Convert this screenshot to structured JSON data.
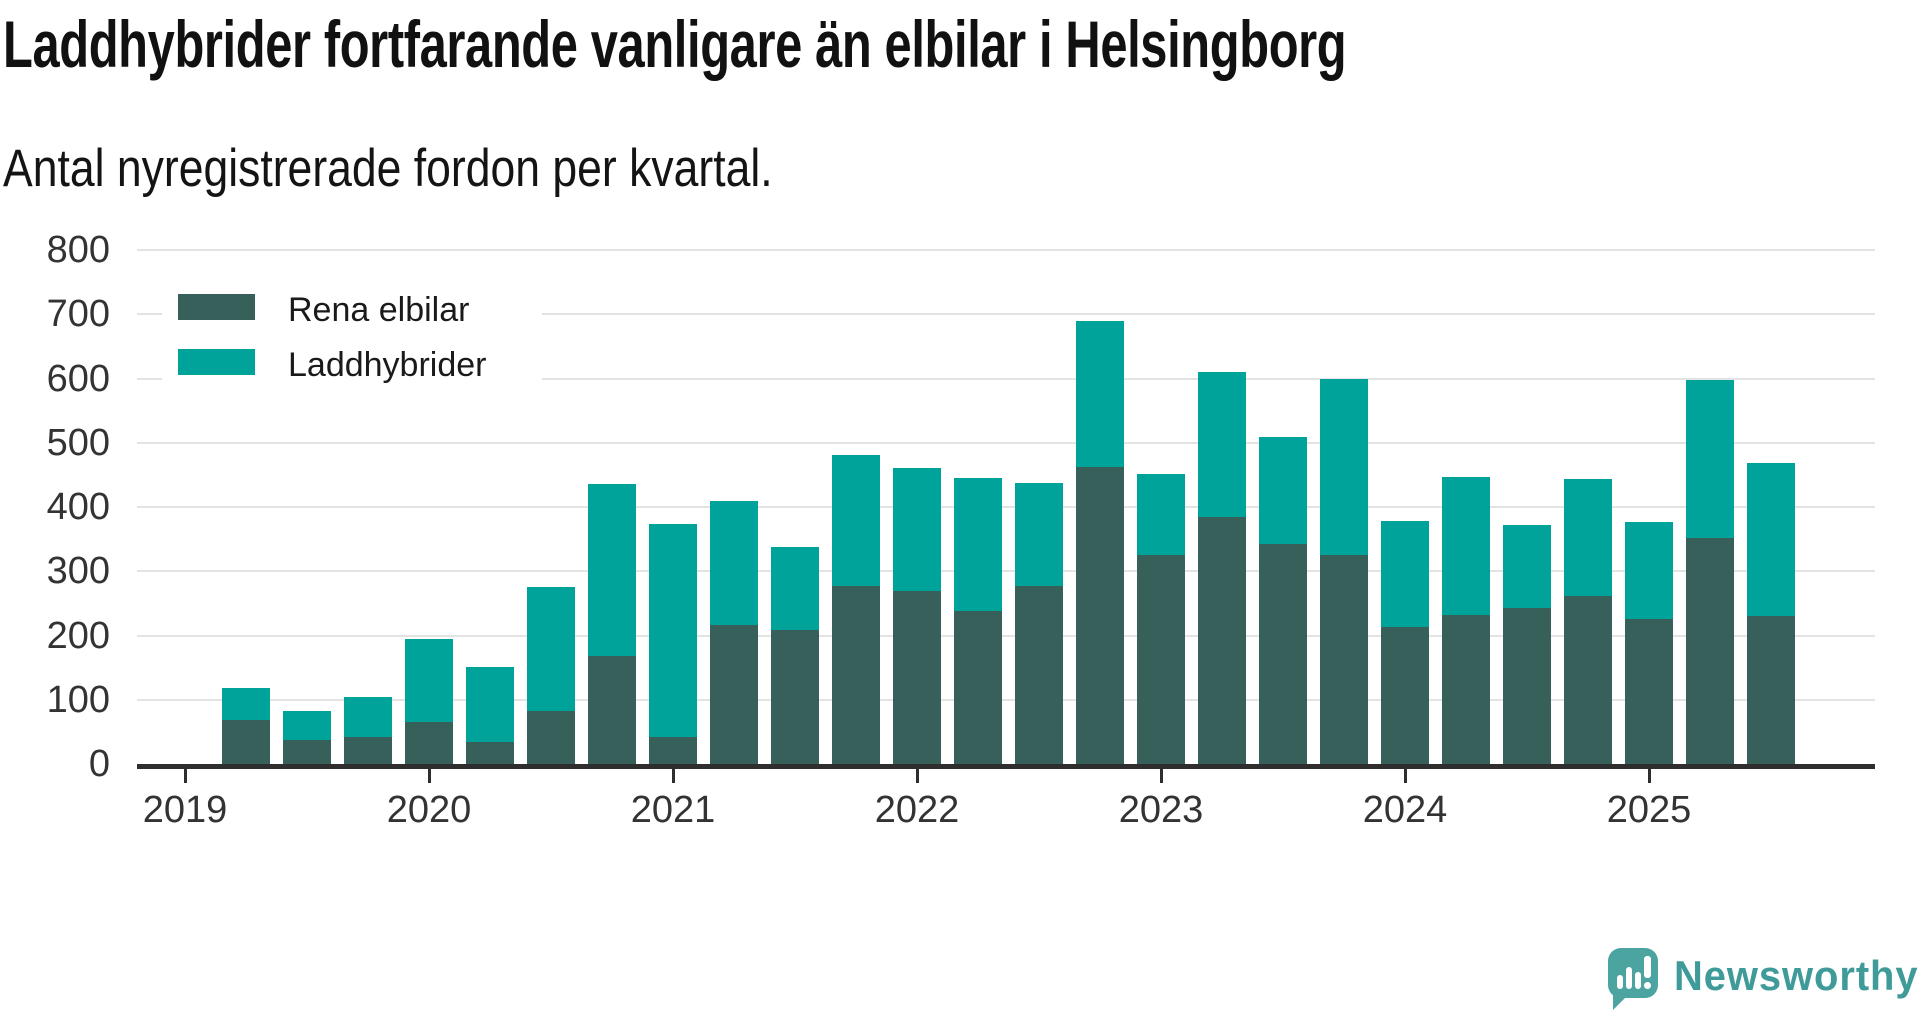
{
  "header": {
    "title": "Laddhybrider fortfarande vanligare än elbilar i Helsingborg",
    "subtitle": "Antal nyregistrerade fordon per kvartal."
  },
  "legend": {
    "items": [
      {
        "label": "Rena elbilar",
        "color": "#37605a"
      },
      {
        "label": "Laddhybrider",
        "color": "#00a39a"
      }
    ]
  },
  "chart_data": {
    "type": "bar",
    "stacked": true,
    "title": "Laddhybrider fortfarande vanligare än elbilar i Helsingborg",
    "subtitle": "Antal nyregistrerade fordon per kvartal.",
    "xlabel": "",
    "ylabel": "",
    "ylim": [
      0,
      800
    ],
    "yticks": [
      0,
      100,
      200,
      300,
      400,
      500,
      600,
      700,
      800
    ],
    "grid": "horizontal",
    "legend_position": "top-left",
    "year_ticks": [
      "2019",
      "2020",
      "2021",
      "2022",
      "2023",
      "2024",
      "2025"
    ],
    "categories": [
      "2019 K2",
      "2019 K3",
      "2019 K4",
      "2020 K1",
      "2020 K2",
      "2020 K3",
      "2020 K4",
      "2021 K1",
      "2021 K2",
      "2021 K3",
      "2021 K4",
      "2022 K1",
      "2022 K2",
      "2022 K3",
      "2022 K4",
      "2023 K1",
      "2023 K2",
      "2023 K3",
      "2023 K4",
      "2024 K1",
      "2024 K2",
      "2024 K3",
      "2024 K4",
      "2025 K1",
      "2025 K2",
      "2025 K3"
    ],
    "series": [
      {
        "name": "Rena elbilar",
        "color": "#37605a",
        "values": [
          68,
          37,
          42,
          66,
          34,
          82,
          168,
          42,
          216,
          209,
          277,
          270,
          238,
          277,
          462,
          326,
          384,
          342,
          326,
          213,
          232,
          243,
          261,
          226,
          352,
          231
        ]
      },
      {
        "name": "Laddhybrider",
        "color": "#00a39a",
        "values": [
          50,
          45,
          62,
          128,
          117,
          194,
          268,
          331,
          194,
          129,
          204,
          190,
          207,
          161,
          228,
          126,
          226,
          167,
          273,
          165,
          214,
          129,
          182,
          150,
          245,
          238
        ]
      }
    ]
  },
  "footer": {
    "brand": "Newsworthy",
    "brand_color": "#3e9b99",
    "logo_color": "#4ca4a1"
  }
}
